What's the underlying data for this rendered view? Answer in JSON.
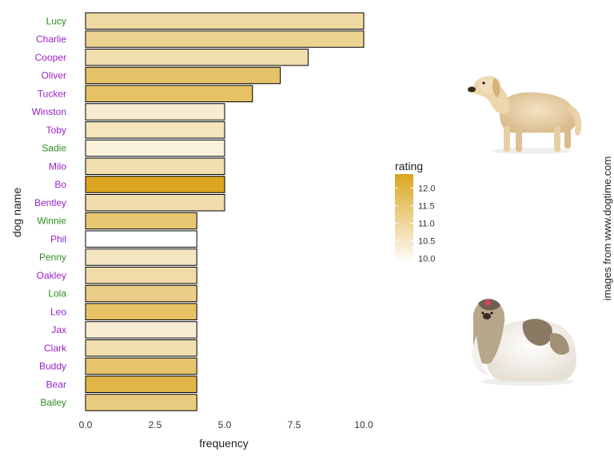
{
  "chart_data": {
    "type": "bar",
    "orientation": "horizontal",
    "xlabel": "frequency",
    "ylabel": "dog name",
    "xlim": [
      0,
      10.4
    ],
    "xticks": [
      "0.0",
      "2.5",
      "5.0",
      "7.5",
      "10.0"
    ],
    "xtick_values": [
      0,
      2.5,
      5,
      7.5,
      10
    ],
    "grid": false,
    "legend_position": "right",
    "legend": {
      "title": "rating",
      "range": [
        9.85,
        12.4
      ],
      "ticks": [
        "12.0",
        "11.5",
        "11.0",
        "10.5",
        "10.0"
      ],
      "tick_values": [
        12.0,
        11.5,
        11.0,
        10.5,
        10.0
      ],
      "color_low": "#ffffff",
      "color_high": "#daa520"
    },
    "bars": [
      {
        "name": "Lucy",
        "value": 10,
        "rating": 10.9,
        "label_color": "#2e8b22"
      },
      {
        "name": "Charlie",
        "value": 10,
        "rating": 11.1,
        "label_color": "#9a22cc"
      },
      {
        "name": "Cooper",
        "value": 8,
        "rating": 10.75,
        "label_color": "#9a22cc"
      },
      {
        "name": "Oliver",
        "value": 7,
        "rating": 11.55,
        "label_color": "#9a22cc"
      },
      {
        "name": "Tucker",
        "value": 6,
        "rating": 11.6,
        "label_color": "#9a22cc"
      },
      {
        "name": "Winston",
        "value": 5,
        "rating": 10.35,
        "label_color": "#9a22cc"
      },
      {
        "name": "Toby",
        "value": 5,
        "rating": 10.6,
        "label_color": "#9a22cc"
      },
      {
        "name": "Sadie",
        "value": 5,
        "rating": 10.25,
        "label_color": "#2e8b22"
      },
      {
        "name": "Milo",
        "value": 5,
        "rating": 10.75,
        "label_color": "#9a22cc"
      },
      {
        "name": "Bo",
        "value": 5,
        "rating": 12.4,
        "label_color": "#9a22cc"
      },
      {
        "name": "Bentley",
        "value": 5,
        "rating": 10.8,
        "label_color": "#9a22cc"
      },
      {
        "name": "Winnie",
        "value": 4,
        "rating": 11.45,
        "label_color": "#2e8b22"
      },
      {
        "name": "Phil",
        "value": 4,
        "rating": 9.85,
        "label_color": "#9a22cc"
      },
      {
        "name": "Penny",
        "value": 4,
        "rating": 10.55,
        "label_color": "#2e8b22"
      },
      {
        "name": "Oakley",
        "value": 4,
        "rating": 10.85,
        "label_color": "#9a22cc"
      },
      {
        "name": "Lola",
        "value": 4,
        "rating": 11.25,
        "label_color": "#2e8b22"
      },
      {
        "name": "Leo",
        "value": 4,
        "rating": 11.6,
        "label_color": "#9a22cc"
      },
      {
        "name": "Jax",
        "value": 4,
        "rating": 10.35,
        "label_color": "#9a22cc"
      },
      {
        "name": "Clark",
        "value": 4,
        "rating": 10.75,
        "label_color": "#9a22cc"
      },
      {
        "name": "Buddy",
        "value": 4,
        "rating": 11.5,
        "label_color": "#9a22cc"
      },
      {
        "name": "Bear",
        "value": 4,
        "rating": 11.95,
        "label_color": "#9a22cc"
      },
      {
        "name": "Bailey",
        "value": 4,
        "rating": 11.3,
        "label_color": "#2e8b22"
      }
    ],
    "side_caption": "images from www.dogtime.com",
    "images": [
      {
        "name": "golden-retriever-photo"
      },
      {
        "name": "shih-tzu-photo"
      }
    ]
  }
}
